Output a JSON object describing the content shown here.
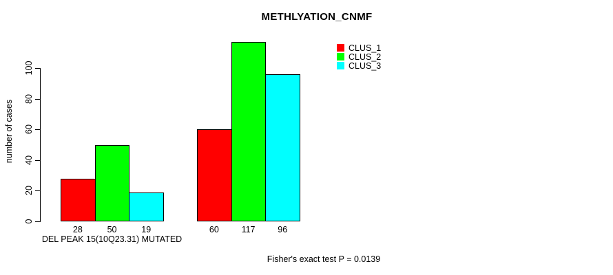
{
  "chart_data": {
    "type": "bar",
    "title": "METHLYATION_CNMF",
    "ylabel": "number of cases",
    "xlabel": "DEL PEAK 15(10Q23.31) MUTATED",
    "categories": [
      "DEL PEAK 15(10Q23.31) MUTATED",
      ""
    ],
    "series": [
      {
        "name": "CLUS_1",
        "color": "#ff0000",
        "values": [
          28,
          60
        ]
      },
      {
        "name": "CLUS_2",
        "color": "#00ff00",
        "values": [
          50,
          117
        ]
      },
      {
        "name": "CLUS_3",
        "color": "#00ffff",
        "values": [
          19,
          96
        ]
      }
    ],
    "bar_value_labels": [
      [
        28,
        50,
        19
      ],
      [
        60,
        117,
        96
      ]
    ],
    "yticks": [
      0,
      20,
      40,
      60,
      80,
      100
    ],
    "ylim": [
      0,
      117
    ],
    "grid": false,
    "legend_position": "top-right",
    "annotation": "Fisher's exact test P = 0.0139",
    "text_color": "#000000",
    "bar_border_color": "#000000",
    "background_color": "#ffffff"
  }
}
